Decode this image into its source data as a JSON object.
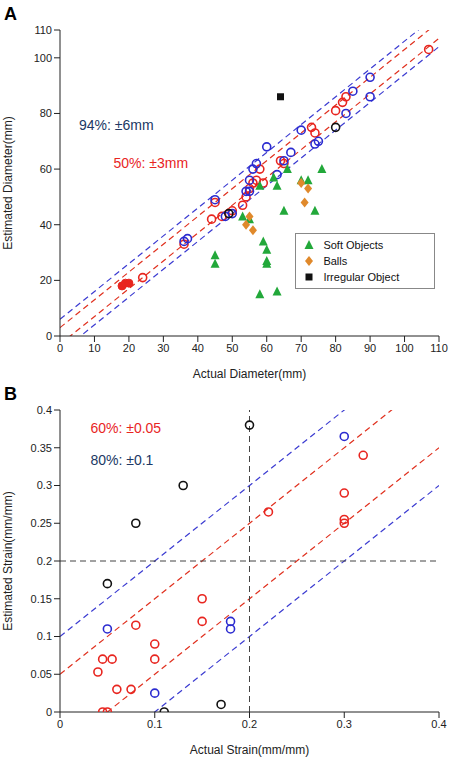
{
  "chart_data": [
    {
      "type": "scatter",
      "panel_label": "A",
      "xlabel": "Actual Diameter(mm)",
      "ylabel": "Estimated Diameter(mm)",
      "xlim": [
        0,
        110
      ],
      "ylim": [
        0,
        110
      ],
      "xticks": [
        0,
        10,
        20,
        30,
        40,
        50,
        60,
        70,
        80,
        90,
        100,
        110
      ],
      "yticks": [
        0,
        20,
        40,
        60,
        80,
        100,
        110
      ],
      "legend": "right",
      "series": [
        {
          "color": "#e8251f",
          "marker": "circle_open",
          "x": [
            24,
            36,
            44,
            45,
            47,
            50,
            53,
            54,
            55,
            56,
            57,
            58,
            59,
            64,
            65,
            73,
            74,
            80,
            82,
            83,
            107
          ],
          "values": [
            21,
            33,
            42,
            48,
            43,
            45,
            47,
            50,
            53,
            55,
            56,
            60,
            55,
            63,
            62,
            75,
            73,
            81,
            84,
            86,
            103
          ]
        },
        {
          "color": "#e8251f",
          "marker": "circle",
          "x": [
            18,
            19,
            20
          ],
          "values": [
            18,
            19,
            19
          ]
        },
        {
          "color": "#2b2bd0",
          "marker": "circle_open",
          "x": [
            36,
            37,
            45,
            48,
            50,
            54,
            55,
            55,
            56,
            57,
            60,
            63,
            65,
            67,
            70,
            74,
            75,
            83,
            85,
            90,
            90
          ],
          "values": [
            34,
            35,
            49,
            43,
            44,
            52,
            52,
            56,
            60,
            62,
            68,
            58,
            63,
            66,
            74,
            69,
            70,
            80,
            88,
            86,
            93
          ]
        },
        {
          "color": "#111111",
          "marker": "circle_open",
          "x": [
            49,
            80
          ],
          "values": [
            44,
            75
          ]
        },
        {
          "name": "Soft Objects",
          "color": "#22a83a",
          "marker": "triangle",
          "x": [
            45,
            45,
            53,
            55,
            58,
            59,
            60,
            60,
            60,
            58,
            63,
            62,
            63,
            65,
            66,
            70,
            72,
            74,
            76
          ],
          "values": [
            29,
            26,
            43,
            42,
            54,
            34,
            27,
            26,
            31,
            15,
            16,
            57,
            54,
            45,
            60,
            56,
            56,
            45,
            60
          ]
        },
        {
          "name": "Balls",
          "color": "#e0892b",
          "marker": "diamond",
          "x": [
            54,
            55,
            56,
            70,
            71,
            72
          ],
          "values": [
            40,
            43,
            38,
            55,
            48,
            53
          ]
        },
        {
          "name": "Irregular Object",
          "color": "#111111",
          "marker": "square",
          "x": [
            64
          ],
          "values": [
            86
          ]
        }
      ],
      "bands": [
        {
          "offset": 6,
          "color": "#3b3bd1",
          "line_style": "dashed"
        },
        {
          "offset": 3,
          "color": "#e0301e",
          "line_style": "dashed"
        }
      ],
      "annotations": [
        {
          "text": "94%: ±6mm",
          "color": "#203864"
        },
        {
          "text": "50%: ±3mm",
          "color": "#e8251f"
        }
      ]
    },
    {
      "type": "scatter",
      "panel_label": "B",
      "xlabel": "Actual Strain(mm/mm)",
      "ylabel": "Estimated Strain(mm/mm)",
      "xlim": [
        0,
        0.4
      ],
      "ylim": [
        0,
        0.4
      ],
      "xticks": [
        0,
        0.1,
        0.2,
        0.3,
        0.4
      ],
      "yticks": [
        0,
        0.05,
        0.1,
        0.15,
        0.2,
        0.25,
        0.3,
        0.35,
        0.4
      ],
      "series": [
        {
          "color": "#e8251f",
          "marker": "circle_open",
          "x": [
            0.04,
            0.045,
            0.055,
            0.045,
            0.05,
            0.06,
            0.075,
            0.08,
            0.1,
            0.1,
            0.15,
            0.15,
            0.22,
            0.3,
            0.3,
            0.3,
            0.32
          ],
          "values": [
            0.053,
            0.07,
            0.07,
            0,
            0,
            0.03,
            0.03,
            0.115,
            0.09,
            0.07,
            0.15,
            0.12,
            0.265,
            0.29,
            0.255,
            0.25,
            0.34
          ]
        },
        {
          "color": "#2b2bd0",
          "marker": "circle_open",
          "x": [
            0.05,
            0.1,
            0.18,
            0.18,
            0.3
          ],
          "values": [
            0.11,
            0.025,
            0.12,
            0.11,
            0.365
          ]
        },
        {
          "color": "#111111",
          "marker": "circle_open",
          "x": [
            0.05,
            0.08,
            0.13,
            0.2,
            0.11,
            0.17
          ],
          "values": [
            0.17,
            0.25,
            0.3,
            0.38,
            0,
            0.01
          ]
        }
      ],
      "bands": [
        {
          "offset": 0.1,
          "color": "#3b3bd1",
          "line_style": "dashed"
        },
        {
          "offset": 0.05,
          "color": "#e0301e",
          "line_style": "dashed"
        }
      ],
      "reference_lines": {
        "x": [
          0.2
        ],
        "y": [
          0.2
        ],
        "color": "#444444",
        "line_style": "dashed"
      },
      "annotations": [
        {
          "text": "60%: ±0.05",
          "color": "#e8251f"
        },
        {
          "text": "80%: ±0.1",
          "color": "#203864"
        }
      ]
    }
  ]
}
